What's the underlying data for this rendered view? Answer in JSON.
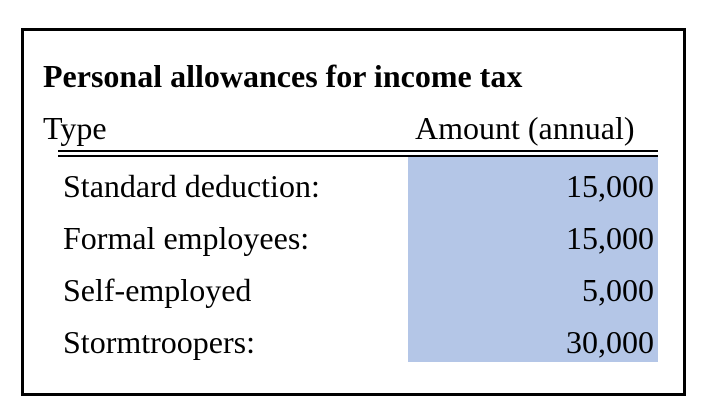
{
  "table": {
    "title": "Personal allowances for income tax",
    "columns": {
      "type": "Type",
      "amount": "Amount (annual)"
    },
    "rows": [
      {
        "label": "Standard deduction:",
        "amount": "15,000"
      },
      {
        "label": "Formal employees:",
        "amount": "15,000"
      },
      {
        "label": "Self-employed",
        "amount": "5,000"
      },
      {
        "label": "Stormtroopers:",
        "amount": "30,000"
      }
    ],
    "amount_fill_color": "#b4c6e7",
    "border_color": "#000000"
  }
}
